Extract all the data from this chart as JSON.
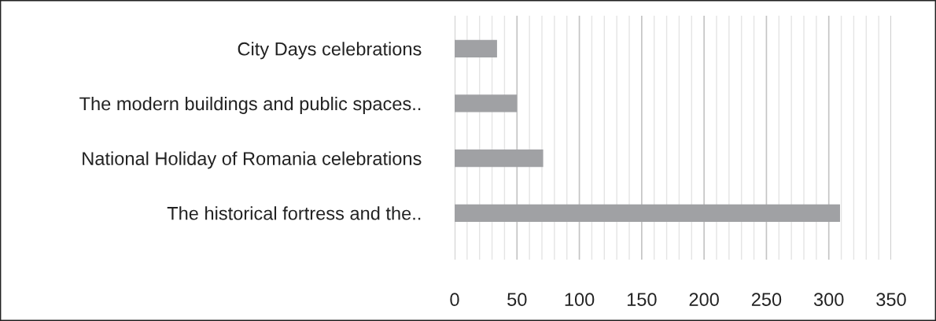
{
  "chart_data": {
    "type": "bar",
    "orientation": "horizontal",
    "categories": [
      "City Days celebrations",
      "The modern buildings and public spaces..",
      "National Holiday of Romania celebrations",
      "The historical fortress and the.."
    ],
    "values": [
      34,
      50,
      71,
      309
    ],
    "color": "#a0a1a4",
    "xlim": [
      0,
      350
    ],
    "xticks": [
      0,
      {
        "value": 10,
        "label": null
      },
      {
        "value": 20,
        "label": null
      },
      {
        "value": 30,
        "label": null
      },
      {
        "value": 40,
        "label": null
      },
      50,
      {
        "value": 60,
        "label": null
      },
      {
        "value": 70,
        "label": null
      },
      {
        "value": 80,
        "label": null
      },
      {
        "value": 90,
        "label": null
      },
      100,
      {
        "value": 110,
        "label": null
      },
      {
        "value": 120,
        "label": null
      },
      {
        "value": 130,
        "label": null
      },
      {
        "value": 140,
        "label": null
      },
      150,
      {
        "value": 160,
        "label": null
      },
      {
        "value": 170,
        "label": null
      },
      {
        "value": 180,
        "label": null
      },
      {
        "value": 190,
        "label": null
      },
      200,
      {
        "value": 210,
        "label": null
      },
      {
        "value": 220,
        "label": null
      },
      {
        "value": 230,
        "label": null
      },
      {
        "value": 240,
        "label": null
      },
      250,
      {
        "value": 260,
        "label": null
      },
      {
        "value": 270,
        "label": null
      },
      {
        "value": 280,
        "label": null
      },
      {
        "value": 290,
        "label": null
      },
      300,
      {
        "value": 310,
        "label": null
      },
      {
        "value": 320,
        "label": null
      },
      {
        "value": 330,
        "label": null
      },
      {
        "value": 340,
        "label": null
      },
      350
    ],
    "grid": "x"
  }
}
